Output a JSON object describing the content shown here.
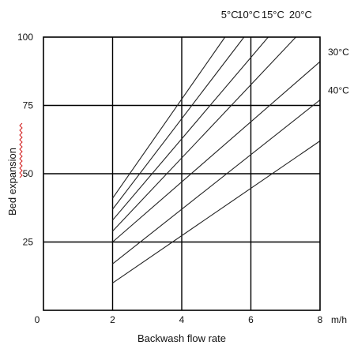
{
  "chart_data": {
    "type": "line",
    "title": "",
    "xlabel": "Backwash flow rate",
    "ylabel": "Bed expansion",
    "x_unit": "m/h",
    "xlim": [
      0,
      8
    ],
    "ylim": [
      0,
      100
    ],
    "x_ticks": [
      0,
      2,
      4,
      6,
      8
    ],
    "y_ticks": [
      25,
      50,
      75,
      100
    ],
    "grid": true,
    "series": [
      {
        "name": "5°C",
        "label_position": "top",
        "points": [
          [
            2,
            41
          ],
          [
            5.25,
            100
          ]
        ]
      },
      {
        "name": "10°C",
        "label_position": "top",
        "points": [
          [
            2,
            37
          ],
          [
            5.8,
            100
          ]
        ]
      },
      {
        "name": "15°C",
        "label_position": "top",
        "points": [
          [
            2,
            33
          ],
          [
            6.5,
            100
          ]
        ]
      },
      {
        "name": "20°C",
        "label_position": "top",
        "points": [
          [
            2,
            29
          ],
          [
            7.3,
            100
          ]
        ]
      },
      {
        "name": "30°C",
        "label_position": "right",
        "points": [
          [
            2,
            25
          ],
          [
            8,
            91
          ]
        ]
      },
      {
        "name": "40°C",
        "label_position": "right",
        "points": [
          [
            2,
            17
          ],
          [
            8,
            77
          ]
        ]
      },
      {
        "name": "",
        "label_position": "none",
        "points": [
          [
            2,
            10
          ],
          [
            8,
            62
          ]
        ]
      }
    ]
  }
}
